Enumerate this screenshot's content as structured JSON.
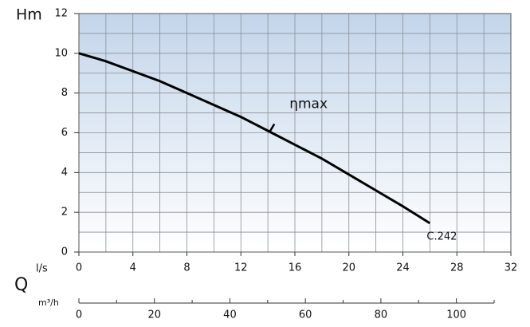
{
  "chart_data": {
    "type": "line",
    "y_label": "Hm",
    "x_label": "l/s",
    "q_label": "Q",
    "x2_label": "m³/h",
    "xlim": [
      0,
      32
    ],
    "xticks": [
      0,
      4,
      8,
      12,
      16,
      20,
      24,
      28,
      32
    ],
    "ylim": [
      0,
      12
    ],
    "yticks": [
      0,
      2,
      4,
      6,
      8,
      10,
      12
    ],
    "xgrid": [
      0,
      2,
      4,
      6,
      8,
      10,
      12,
      14,
      16,
      18,
      20,
      22,
      24,
      26,
      28,
      30,
      32
    ],
    "ygrid": [
      0,
      1,
      2,
      3,
      4,
      5,
      6,
      7,
      8,
      9,
      10,
      11,
      12
    ],
    "x2lim": [
      0,
      110
    ],
    "x2ticks": [
      0,
      20,
      40,
      60,
      80,
      100
    ],
    "x2minor": [
      10,
      30,
      50,
      70,
      90,
      110
    ],
    "series": [
      {
        "name": "C.242",
        "color": "#000000",
        "x": [
          0,
          2,
          4,
          6,
          8,
          10,
          12,
          14,
          16,
          18,
          20,
          22,
          24,
          26
        ],
        "values": [
          10,
          9.6,
          9.1,
          8.6,
          8.0,
          7.4,
          6.8,
          6.1,
          5.4,
          4.7,
          3.9,
          3.1,
          2.3,
          1.45
        ]
      }
    ],
    "annotation": {
      "text": "ηmax",
      "x": 14.3,
      "y": 6.2
    }
  }
}
